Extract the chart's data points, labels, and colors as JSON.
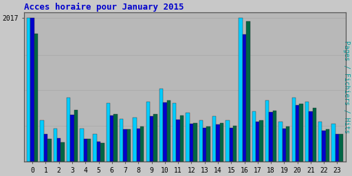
{
  "title": "Acces horaire pour January 2015",
  "ylabel": "Pages / Fichiers / Hits",
  "hours": [
    0,
    1,
    2,
    3,
    4,
    5,
    6,
    7,
    8,
    9,
    10,
    11,
    12,
    13,
    14,
    15,
    16,
    17,
    18,
    19,
    20,
    21,
    22,
    23
  ],
  "ymax": 2017,
  "ytick_val": 2017,
  "ytick_label": "2017",
  "hits": [
    2017,
    580,
    460,
    900,
    460,
    390,
    820,
    600,
    620,
    840,
    1020,
    820,
    680,
    580,
    640,
    580,
    2017,
    700,
    860,
    560,
    900,
    840,
    560,
    530
  ],
  "fichiers": [
    2017,
    390,
    330,
    660,
    320,
    280,
    650,
    450,
    460,
    640,
    830,
    590,
    530,
    470,
    520,
    470,
    1790,
    560,
    690,
    460,
    790,
    700,
    430,
    390
  ],
  "pages": [
    1800,
    320,
    270,
    720,
    315,
    260,
    670,
    450,
    490,
    670,
    860,
    650,
    540,
    490,
    540,
    500,
    1970,
    580,
    710,
    490,
    810,
    750,
    450,
    390
  ],
  "color_hits": "#00ccff",
  "color_fichiers": "#0000cc",
  "color_pages": "#006644",
  "background_plot": "#b8b8b8",
  "background_fig": "#c8c8c8",
  "title_color": "#0000cc",
  "ylabel_color": "#009999",
  "grid_color": "#aaaaaa",
  "bar_width": 0.28,
  "title_fontsize": 9,
  "ylabel_fontsize": 7,
  "tick_fontsize": 7
}
